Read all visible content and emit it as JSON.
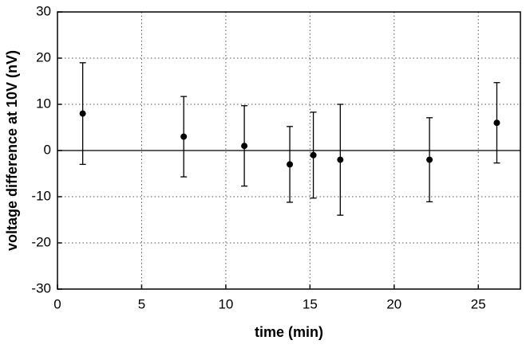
{
  "chart_data": {
    "type": "scatter",
    "x_label": "time (min)",
    "y_label": "voltage difference at 10V (nV)",
    "series": [
      {
        "color": "#000000",
        "x": [
          1.5,
          7.5,
          11.1,
          13.8,
          15.2,
          16.8,
          22.1,
          26.1
        ],
        "values": [
          8,
          3,
          1,
          -3,
          -1,
          -2,
          -2,
          6
        ],
        "errors": [
          11,
          8.7,
          8.7,
          8.2,
          9.3,
          12,
          9.1,
          8.7
        ]
      }
    ],
    "xlim": [
      0,
      27.5
    ],
    "ylim": [
      -30,
      30
    ],
    "xticks": [
      0,
      5,
      10,
      15,
      20,
      25
    ],
    "yticks": [
      -30,
      -20,
      -10,
      0,
      10,
      20,
      30
    ],
    "grid": true
  }
}
